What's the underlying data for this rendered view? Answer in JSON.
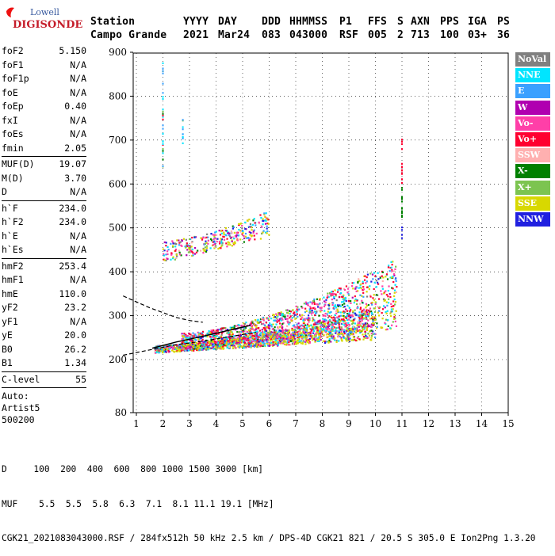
{
  "brand": {
    "line1": "Lowell",
    "line2": "DIGISONDE"
  },
  "header": {
    "labels": [
      "Station",
      "YYYY",
      "DAY",
      "DDD",
      "HHMMSS",
      "P1",
      "FFS",
      "S",
      "AXN",
      "PPS",
      "IGA",
      "PS"
    ],
    "values": [
      "Campo Grande",
      "2021",
      "Mar24",
      "083",
      "043000",
      "RSF",
      "005",
      "2",
      "713",
      "100",
      "03+",
      "36"
    ]
  },
  "params": {
    "group1": [
      {
        "k": "foF2",
        "v": "5.150"
      },
      {
        "k": "foF1",
        "v": "N/A"
      },
      {
        "k": "foF1p",
        "v": "N/A"
      },
      {
        "k": "foE",
        "v": "N/A"
      },
      {
        "k": "foEp",
        "v": "0.40"
      },
      {
        "k": "fxI",
        "v": "N/A"
      },
      {
        "k": "foEs",
        "v": "N/A"
      },
      {
        "k": "fmin",
        "v": "2.05"
      }
    ],
    "group2": [
      {
        "k": "MUF(D)",
        "v": "19.07"
      },
      {
        "k": "M(D)",
        "v": "3.70"
      },
      {
        "k": "D",
        "v": "N/A"
      }
    ],
    "group3": [
      {
        "k": "h`F",
        "v": "234.0"
      },
      {
        "k": "h`F2",
        "v": "234.0"
      },
      {
        "k": "h`E",
        "v": "N/A"
      },
      {
        "k": "h`Es",
        "v": "N/A"
      }
    ],
    "group4": [
      {
        "k": "hmF2",
        "v": "253.4"
      },
      {
        "k": "hmF1",
        "v": "N/A"
      },
      {
        "k": "hmE",
        "v": "110.0"
      },
      {
        "k": "yF2",
        "v": "23.2"
      },
      {
        "k": "yF1",
        "v": "N/A"
      },
      {
        "k": "yE",
        "v": "20.0"
      },
      {
        "k": "B0",
        "v": "26.2"
      },
      {
        "k": "B1",
        "v": "1.34"
      }
    ],
    "group5": [
      {
        "k": "C-level",
        "v": "55"
      }
    ],
    "auto": [
      "Auto:",
      "Artist5",
      "500200"
    ]
  },
  "legend": [
    {
      "label": "NoVal",
      "color": "#808080"
    },
    {
      "label": "NNE",
      "color": "#00e5ff"
    },
    {
      "label": "E",
      "color": "#3aa0ff"
    },
    {
      "label": "W",
      "color": "#b000b0"
    },
    {
      "label": "Vo-",
      "color": "#ff3fa8"
    },
    {
      "label": "Vo+",
      "color": "#ff0030"
    },
    {
      "label": "SSW",
      "color": "#ffb0b0"
    },
    {
      "label": "X-",
      "color": "#008000"
    },
    {
      "label": "X+",
      "color": "#7cc450"
    },
    {
      "label": "SSE",
      "color": "#d8d800"
    },
    {
      "label": "NNW",
      "color": "#2020e0"
    }
  ],
  "bottom": {
    "d_row": "D     100  200  400  600  800 1000 1500 3000 [km]",
    "muf_row": "MUF    5.5  5.5  5.8  6.3  7.1  8.1 11.1 19.1 [MHz]",
    "file_line": "CGK21_2021083043000.RSF / 284fx512h 50 kHz 2.5 km / DPS-4D CGK21 821 / 20.5 S 305.0 E Ion2Png 1.3.20"
  },
  "chart_data": {
    "type": "scatter",
    "title": "",
    "xlabel": "",
    "ylabel": "",
    "xlim": [
      0.5,
      15
    ],
    "ylim": [
      80,
      900
    ],
    "x_ticks": [
      "1",
      "2",
      "3",
      "4",
      "5",
      "6",
      "7",
      "8",
      "9",
      "10",
      "11",
      "12",
      "13",
      "14",
      "15"
    ],
    "y_ticks": [
      "80",
      "200",
      "300",
      "400",
      "500",
      "600",
      "700",
      "800",
      "900"
    ],
    "grid": "dotted",
    "clusters": [
      {
        "name": "o-trace F2",
        "x_range": [
          1.7,
          10.0
        ],
        "h_start": [
          215,
          232
        ],
        "h_end": [
          245,
          320
        ],
        "density": 1600
      },
      {
        "name": "x-trace F2",
        "x_range": [
          2.7,
          10.8
        ],
        "h_start": [
          225,
          260
        ],
        "h_end": [
          270,
          430
        ],
        "density": 1300
      },
      {
        "name": "second hop",
        "x_range": [
          2.0,
          6.0
        ],
        "h_start": [
          420,
          470
        ],
        "h_end": [
          480,
          540
        ],
        "density": 320
      },
      {
        "name": "vertical streak 2.0 MHz",
        "x": 2.0,
        "h_range": [
          630,
          880
        ],
        "density": 30
      },
      {
        "name": "vertical streak 2.7 MHz",
        "x": 2.75,
        "h_range": [
          690,
          770
        ],
        "density": 10
      },
      {
        "name": "vertical streak 11.0 MHz",
        "x": 11.0,
        "h_range": [
          470,
          730
        ],
        "density": 30
      }
    ],
    "fitted_curves": [
      {
        "name": "upper dashed",
        "x": [
          0.5,
          1.5,
          2.5,
          3.0,
          3.5
        ],
        "h": [
          345,
          318,
          296,
          289,
          285
        ]
      },
      {
        "name": "lower dashed",
        "x": [
          0.5,
          1.5,
          2.5,
          3.5,
          4.5,
          5.5
        ],
        "h": [
          210,
          222,
          234,
          242,
          252,
          262
        ]
      },
      {
        "name": "trace line",
        "x": [
          1.6,
          2.5,
          3.5,
          4.5,
          5.3
        ],
        "h": [
          226,
          240,
          253,
          267,
          278
        ]
      }
    ]
  }
}
